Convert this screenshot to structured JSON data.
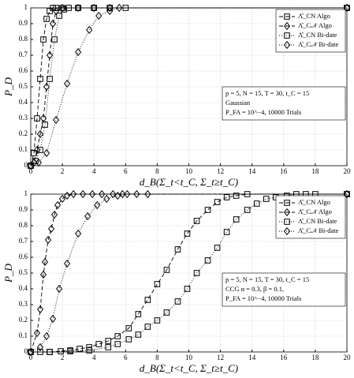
{
  "chart_data": [
    {
      "type": "line",
      "xlabel": "d_B(Σ_t<t_C, Σ_t≥t_C)",
      "ylabel": "P_D",
      "xlim": [
        0,
        20
      ],
      "ylim": [
        0,
        1
      ],
      "xticks": [
        0,
        2,
        4,
        6,
        8,
        10,
        12,
        14,
        16,
        18,
        20
      ],
      "yticks": [
        0,
        0.1,
        0.2,
        0.3,
        0.4,
        0.5,
        0.6,
        0.7,
        0.8,
        0.9,
        1
      ],
      "grid": true,
      "legend": "upper right",
      "annotation": [
        "p = 5, N = 15, T = 30, t_C = 15",
        "Gaussian",
        "P_FA = 10^−4, 10000 Trials"
      ],
      "series": [
        {
          "name": "Λ̂_CN Algo",
          "color": "#000000",
          "marker": "square",
          "dash": "dashed",
          "x": [
            0,
            0.2,
            0.4,
            0.6,
            0.8,
            1.0,
            1.2,
            1.4,
            1.6,
            2,
            3,
            4,
            5,
            6,
            20
          ],
          "values": [
            0,
            0.08,
            0.3,
            0.55,
            0.8,
            0.93,
            0.98,
            1,
            1,
            1,
            1,
            1,
            1,
            1,
            1
          ]
        },
        {
          "name": "Λ̂_C𝒩 Algo",
          "color": "#000000",
          "marker": "diamond",
          "dash": "dashed",
          "x": [
            0,
            0.2,
            0.4,
            0.6,
            0.8,
            1.0,
            1.2,
            1.4,
            1.6,
            2,
            3,
            4,
            5,
            20
          ],
          "values": [
            0,
            0.02,
            0.1,
            0.2,
            0.3,
            0.5,
            0.7,
            0.9,
            0.98,
            1,
            1,
            1,
            1,
            1
          ]
        },
        {
          "name": "Λ̂_CN Bi-date",
          "color": "#000000",
          "marker": "square",
          "dash": "dotted",
          "x": [
            0,
            0.3,
            0.6,
            0.9,
            1.2,
            1.5,
            1.8,
            2.1,
            2.4,
            3,
            4,
            5,
            20
          ],
          "values": [
            0,
            0.03,
            0.1,
            0.26,
            0.55,
            0.8,
            0.95,
            0.99,
            1,
            1,
            1,
            1,
            1
          ]
        },
        {
          "name": "Λ̂_C𝒩 Bi-date",
          "color": "#000000",
          "marker": "diamond",
          "dash": "dotted",
          "x": [
            0,
            0.5,
            1.0,
            1.6,
            2.3,
            3.0,
            3.7,
            4.3,
            5.0,
            5.6,
            20
          ],
          "values": [
            0,
            0.02,
            0.08,
            0.29,
            0.52,
            0.72,
            0.86,
            0.95,
            0.98,
            1,
            1
          ]
        }
      ]
    },
    {
      "type": "line",
      "xlabel": "d_B(Σ_t<t_C, Σ_t≥t_C)",
      "ylabel": "P_D",
      "xlim": [
        0,
        20
      ],
      "ylim": [
        0,
        1
      ],
      "xticks": [
        0,
        2,
        4,
        6,
        8,
        10,
        12,
        14,
        16,
        18,
        20
      ],
      "yticks": [
        0,
        0.1,
        0.2,
        0.3,
        0.4,
        0.5,
        0.6,
        0.7,
        0.8,
        0.9,
        1
      ],
      "grid": true,
      "legend": "upper right",
      "annotation": [
        "p = 5, N = 15, T = 30, t_C = 15",
        "CCG α = 0.3, β = 0.1,",
        "P_FA = 10^−4, 10000 Trials"
      ],
      "series": [
        {
          "name": "Λ̂_CN Algo",
          "color": "#000000",
          "marker": "square",
          "dash": "dashed",
          "x": [
            0,
            0.6,
            1.2,
            1.9,
            2.5,
            3.1,
            3.7,
            4.3,
            4.9,
            5.5,
            6.2,
            6.8,
            7.4,
            8.0,
            8.6,
            9.3,
            9.9,
            10.5,
            11.2,
            11.8,
            12.4,
            13.0,
            13.7,
            20
          ],
          "values": [
            0,
            0,
            0,
            0.005,
            0.01,
            0.02,
            0.03,
            0.05,
            0.07,
            0.1,
            0.15,
            0.24,
            0.33,
            0.43,
            0.52,
            0.65,
            0.75,
            0.83,
            0.9,
            0.95,
            0.98,
            0.99,
            1,
            1
          ]
        },
        {
          "name": "Λ̂_C𝒩 Algo",
          "color": "#000000",
          "marker": "diamond",
          "dash": "dashed",
          "x": [
            0,
            0.4,
            0.6,
            0.8,
            0.9,
            1.1,
            1.3,
            1.5,
            1.7,
            2,
            2.3,
            2.7,
            3.3,
            3.9,
            4.5,
            5.2,
            5.8,
            20
          ],
          "values": [
            0,
            0.12,
            0.27,
            0.49,
            0.57,
            0.71,
            0.78,
            0.87,
            0.93,
            0.97,
            0.99,
            1,
            1,
            1,
            1,
            1,
            1,
            1
          ]
        },
        {
          "name": "Λ̂_CN Bi-date",
          "color": "#000000",
          "marker": "square",
          "dash": "dotted",
          "x": [
            0,
            1.2,
            2.5,
            3.7,
            4.9,
            5.5,
            6.2,
            6.8,
            7.4,
            8,
            8.6,
            9.3,
            9.9,
            10.5,
            11.2,
            11.8,
            12.4,
            13,
            13.7,
            14.3,
            14.9,
            15.5,
            16.2,
            16.8,
            17.4,
            18,
            20
          ],
          "values": [
            0,
            0,
            0.005,
            0.01,
            0.03,
            0.05,
            0.08,
            0.11,
            0.16,
            0.2,
            0.25,
            0.32,
            0.4,
            0.5,
            0.58,
            0.66,
            0.76,
            0.84,
            0.9,
            0.94,
            0.97,
            0.98,
            0.99,
            1,
            1,
            1,
            1
          ]
        },
        {
          "name": "Λ̂_C𝒩 Bi-date",
          "color": "#000000",
          "marker": "diamond",
          "dash": "dotted",
          "x": [
            0,
            0.6,
            1.0,
            1.4,
            1.8,
            2.3,
            3,
            3.6,
            4.2,
            4.8,
            5.5,
            6.1,
            6.7,
            7.4,
            20
          ],
          "values": [
            0,
            0.03,
            0.1,
            0.21,
            0.4,
            0.56,
            0.75,
            0.86,
            0.93,
            0.97,
            0.99,
            1,
            1,
            1,
            1
          ]
        }
      ]
    }
  ]
}
